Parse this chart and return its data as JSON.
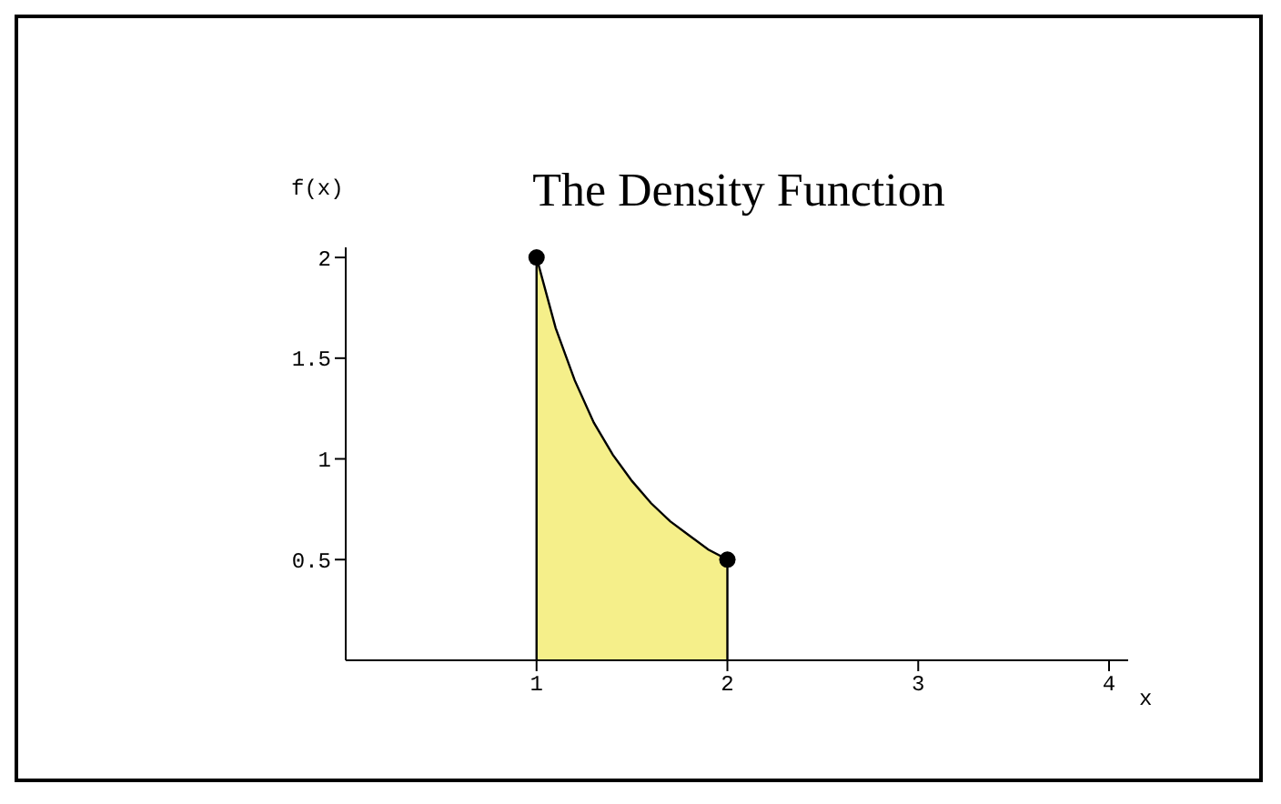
{
  "chart_data": {
    "type": "area",
    "title": "The Density Function",
    "xlabel": "x",
    "ylabel": "f(x)",
    "xlim": [
      0,
      4.1
    ],
    "xticks": [
      1,
      2,
      3,
      4
    ],
    "ylim": [
      0,
      2.05
    ],
    "yticks": [
      0.5,
      1,
      1.5,
      2
    ],
    "grid": false,
    "legend": false,
    "series": [
      {
        "color": "#f5ef8a",
        "x": [
          1,
          1,
          1.1,
          1.2,
          1.3,
          1.4,
          1.5,
          1.6,
          1.7,
          1.8,
          1.9,
          2,
          2
        ],
        "values": [
          0,
          2,
          1.65,
          1.39,
          1.18,
          1.02,
          0.89,
          0.78,
          0.69,
          0.62,
          0.55,
          0.5,
          0
        ]
      },
      {
        "type": "scatter",
        "color": "#000000",
        "marker": "circle",
        "x": [
          1,
          2
        ],
        "values": [
          2,
          0.5
        ]
      }
    ]
  }
}
